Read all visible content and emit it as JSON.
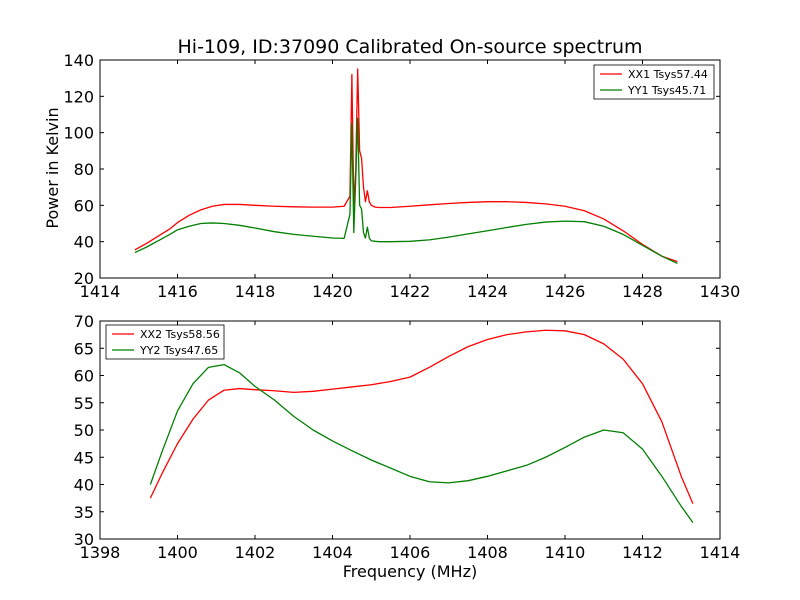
{
  "chart_data": [
    {
      "type": "line",
      "title": "Hi-109, ID:37090 Calibrated On-source spectrum",
      "xlabel": "",
      "ylabel": "Power in Kelvin",
      "xlim": [
        1414,
        1430
      ],
      "ylim": [
        20,
        140
      ],
      "xticks": [
        "1414",
        "1416",
        "1418",
        "1420",
        "1422",
        "1424",
        "1426",
        "1428",
        "1430"
      ],
      "yticks": [
        "20",
        "40",
        "60",
        "80",
        "100",
        "120",
        "140"
      ],
      "grid": false,
      "legend_position": "top-right",
      "series": [
        {
          "name": "XX1 Tsys57.44",
          "color": "#ff0000",
          "x": [
            1414.9,
            1415.2,
            1415.5,
            1415.8,
            1416.0,
            1416.3,
            1416.6,
            1416.9,
            1417.2,
            1417.6,
            1418.0,
            1418.5,
            1419.0,
            1419.5,
            1420.0,
            1420.3,
            1420.45,
            1420.5,
            1420.55,
            1420.6,
            1420.65,
            1420.7,
            1420.75,
            1420.8,
            1420.85,
            1420.9,
            1420.95,
            1421.0,
            1421.1,
            1421.2,
            1421.5,
            1422.0,
            1422.5,
            1423.0,
            1423.5,
            1424.0,
            1424.5,
            1425.0,
            1425.5,
            1426.0,
            1426.5,
            1427.0,
            1427.5,
            1428.0,
            1428.5,
            1428.9
          ],
          "y": [
            35.5,
            39,
            43,
            47,
            50.5,
            54.5,
            57.5,
            59.5,
            60.5,
            60.5,
            60,
            59.5,
            59.2,
            59,
            59,
            59.5,
            65,
            132,
            60,
            80,
            135,
            90,
            86,
            70,
            62,
            68,
            62,
            60,
            59,
            58.8,
            58.8,
            59.5,
            60.3,
            61,
            61.6,
            62,
            62,
            61.6,
            60.8,
            59.5,
            57,
            52.5,
            46,
            38.5,
            32,
            29
          ]
        },
        {
          "name": "YY1 Tsys45.71",
          "color": "#008000",
          "x": [
            1414.9,
            1415.2,
            1415.5,
            1415.8,
            1416.0,
            1416.3,
            1416.6,
            1416.9,
            1417.2,
            1417.6,
            1418.0,
            1418.5,
            1419.0,
            1419.5,
            1420.0,
            1420.3,
            1420.45,
            1420.5,
            1420.55,
            1420.6,
            1420.65,
            1420.7,
            1420.75,
            1420.8,
            1420.85,
            1420.9,
            1420.95,
            1421.0,
            1421.1,
            1421.2,
            1421.5,
            1422.0,
            1422.5,
            1423.0,
            1423.5,
            1424.0,
            1424.5,
            1425.0,
            1425.5,
            1426.0,
            1426.5,
            1427.0,
            1427.5,
            1428.0,
            1428.5,
            1428.9
          ],
          "y": [
            34,
            37,
            40.5,
            44,
            46.5,
            48.5,
            50,
            50.3,
            50,
            49,
            47.5,
            45.5,
            44,
            43,
            42,
            41.8,
            55,
            105,
            45,
            75,
            108,
            60,
            58,
            45,
            42,
            48,
            42,
            40.5,
            40.2,
            40,
            40,
            40.2,
            41,
            42.5,
            44.3,
            46,
            47.8,
            49.5,
            50.8,
            51.3,
            51,
            48.5,
            44,
            38,
            32,
            28
          ]
        }
      ]
    },
    {
      "type": "line",
      "title": "",
      "xlabel": "Frequency (MHz)",
      "ylabel": "",
      "xlim": [
        1398,
        1414
      ],
      "ylim": [
        30,
        70
      ],
      "xticks": [
        "1398",
        "1400",
        "1402",
        "1404",
        "1406",
        "1408",
        "1410",
        "1412",
        "1414"
      ],
      "yticks": [
        "30",
        "35",
        "40",
        "45",
        "50",
        "55",
        "60",
        "65",
        "70"
      ],
      "grid": false,
      "legend_position": "top-left",
      "series": [
        {
          "name": "XX2 Tsys58.56",
          "color": "#ff0000",
          "x": [
            1399.3,
            1399.6,
            1400.0,
            1400.4,
            1400.8,
            1401.2,
            1401.6,
            1402.0,
            1402.5,
            1403.0,
            1403.5,
            1404.0,
            1404.5,
            1405.0,
            1405.5,
            1406.0,
            1406.5,
            1407.0,
            1407.5,
            1408.0,
            1408.5,
            1409.0,
            1409.5,
            1410.0,
            1410.5,
            1411.0,
            1411.5,
            1412.0,
            1412.5,
            1413.0,
            1413.3
          ],
          "y": [
            37.5,
            42,
            47.5,
            52,
            55.5,
            57.3,
            57.6,
            57.4,
            57.2,
            56.9,
            57.1,
            57.5,
            57.9,
            58.3,
            58.9,
            59.7,
            61.5,
            63.5,
            65.3,
            66.6,
            67.5,
            68,
            68.3,
            68.2,
            67.5,
            65.8,
            63,
            58.5,
            51.5,
            41.5,
            36.5
          ]
        },
        {
          "name": "YY2 Tsys47.65",
          "color": "#008000",
          "x": [
            1399.3,
            1399.6,
            1400.0,
            1400.4,
            1400.8,
            1401.2,
            1401.6,
            1402.0,
            1402.5,
            1403.0,
            1403.5,
            1404.0,
            1404.5,
            1405.0,
            1405.5,
            1406.0,
            1406.5,
            1407.0,
            1407.5,
            1408.0,
            1408.5,
            1409.0,
            1409.5,
            1410.0,
            1410.5,
            1411.0,
            1411.5,
            1412.0,
            1412.5,
            1413.0,
            1413.3
          ],
          "y": [
            40,
            46,
            53.5,
            58.5,
            61.5,
            62,
            60.5,
            58,
            55.5,
            52.5,
            50,
            48,
            46.2,
            44.5,
            43,
            41.5,
            40.5,
            40.3,
            40.7,
            41.5,
            42.5,
            43.5,
            45,
            46.8,
            48.7,
            50,
            49.5,
            46.5,
            41.5,
            36,
            33
          ]
        }
      ]
    }
  ]
}
